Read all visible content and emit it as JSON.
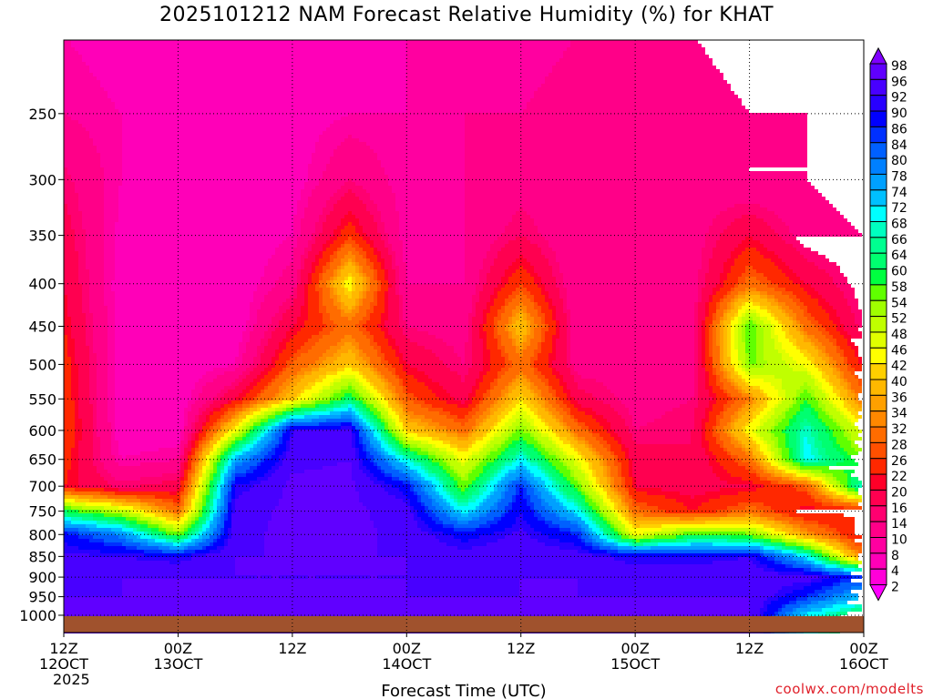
{
  "chart_data": {
    "type": "heatmap",
    "title": "2025101212 NAM Forecast Relative Humidity (%) for KHAT",
    "xlabel": "Forecast Time (UTC)",
    "ylabel": "",
    "credit": "coolwx.com/modelts",
    "x_hours": [
      0,
      6,
      12,
      18,
      24,
      30,
      36,
      42,
      48,
      54,
      60,
      66,
      72,
      78,
      84
    ],
    "xlim": [
      0,
      84
    ],
    "x_ticks": [
      {
        "hour": 0,
        "line1": "12Z",
        "line2": "12OCT",
        "line3": "2025"
      },
      {
        "hour": 12,
        "line1": "00Z",
        "line2": "13OCT"
      },
      {
        "hour": 24,
        "line1": "12Z"
      },
      {
        "hour": 36,
        "line1": "00Z",
        "line2": "14OCT"
      },
      {
        "hour": 48,
        "line1": "12Z"
      },
      {
        "hour": 60,
        "line1": "00Z",
        "line2": "15OCT"
      },
      {
        "hour": 72,
        "line1": "12Z"
      },
      {
        "hour": 84,
        "line1": "00Z",
        "line2": "16OCT"
      }
    ],
    "y_levels_hpa": [
      1000,
      950,
      900,
      850,
      800,
      750,
      700,
      650,
      600,
      550,
      500,
      450,
      400,
      350,
      300,
      250,
      200
    ],
    "y_ticks": [
      "250",
      "300",
      "350",
      "400",
      "450",
      "500",
      "550",
      "600",
      "650",
      "700",
      "750",
      "800",
      "850",
      "900",
      "950",
      "1000"
    ],
    "ylim_hpa": [
      1049,
      204
    ],
    "y_scale": "log",
    "grid": true,
    "rh_percent": [
      [
        96,
        96,
        95,
        93,
        88,
        60,
        22,
        24,
        26,
        25,
        24,
        22,
        20,
        18,
        15,
        10,
        8
      ],
      [
        96,
        96,
        96,
        92,
        78,
        50,
        15,
        8,
        6,
        6,
        6,
        6,
        6,
        7,
        8,
        8,
        6
      ],
      [
        96,
        96,
        96,
        90,
        55,
        30,
        18,
        10,
        5,
        5,
        5,
        5,
        5,
        5,
        5,
        6,
        6
      ],
      [
        96,
        96,
        96,
        96,
        95,
        94,
        90,
        75,
        45,
        20,
        8,
        5,
        5,
        5,
        5,
        6,
        6
      ],
      [
        96,
        96,
        96,
        96,
        97,
        97,
        97,
        95,
        92,
        40,
        28,
        20,
        12,
        8,
        6,
        6,
        6
      ],
      [
        96,
        96,
        96,
        96,
        97,
        97,
        97,
        96,
        93,
        62,
        40,
        30,
        45,
        25,
        14,
        8,
        6
      ],
      [
        96,
        96,
        96,
        96,
        95,
        94,
        88,
        68,
        40,
        28,
        20,
        14,
        10,
        8,
        8,
        8,
        8
      ],
      [
        96,
        96,
        95,
        94,
        88,
        70,
        55,
        45,
        30,
        18,
        14,
        12,
        10,
        10,
        10,
        10,
        8
      ],
      [
        96,
        96,
        96,
        95,
        93,
        90,
        86,
        70,
        55,
        42,
        30,
        40,
        26,
        16,
        12,
        10,
        8
      ],
      [
        96,
        96,
        96,
        94,
        86,
        70,
        55,
        45,
        30,
        18,
        12,
        10,
        10,
        10,
        12,
        12,
        10
      ],
      [
        96,
        96,
        95,
        90,
        45,
        30,
        20,
        18,
        14,
        12,
        12,
        12,
        12,
        12,
        12,
        12,
        10
      ],
      [
        96,
        96,
        95,
        90,
        58,
        22,
        18,
        16,
        16,
        14,
        12,
        12,
        12,
        12,
        12,
        12,
        10
      ],
      [
        96,
        96,
        95,
        92,
        55,
        30,
        20,
        30,
        45,
        32,
        55,
        58,
        30,
        20,
        10,
        10,
        8
      ],
      [
        70,
        86,
        94,
        70,
        35,
        20,
        28,
        70,
        68,
        58,
        45,
        30,
        20,
        12,
        10,
        10,
        8
      ],
      [
        60,
        72,
        84,
        30,
        20,
        22,
        70,
        55,
        45,
        30,
        20,
        14,
        12,
        10,
        8,
        8,
        8
      ]
    ],
    "ground_color": "#a0522d",
    "colorbar": {
      "labels": [
        "98",
        "96",
        "92",
        "90",
        "86",
        "84",
        "80",
        "78",
        "74",
        "72",
        "68",
        "66",
        "64",
        "60",
        "58",
        "54",
        "52",
        "48",
        "46",
        "42",
        "40",
        "36",
        "34",
        "32",
        "28",
        "26",
        "22",
        "20",
        "16",
        "14",
        "10",
        "8",
        "4",
        "2"
      ],
      "thresholds": [
        2,
        4,
        8,
        10,
        14,
        16,
        20,
        22,
        26,
        28,
        32,
        34,
        36,
        40,
        42,
        46,
        48,
        52,
        54,
        58,
        60,
        64,
        66,
        68,
        72,
        74,
        78,
        80,
        84,
        86,
        90,
        92,
        96,
        98
      ],
      "colors": [
        "#ff00ff",
        "#ff00d8",
        "#ff00b8",
        "#ff00a0",
        "#ff0088",
        "#ff0070",
        "#ff0050",
        "#ff0028",
        "#ff2800",
        "#ff5000",
        "#ff6c00",
        "#ff8800",
        "#ffa000",
        "#ffb800",
        "#ffd000",
        "#ffff00",
        "#e0ff00",
        "#c0ff00",
        "#a0ff00",
        "#60ff00",
        "#00ff40",
        "#00ff70",
        "#00ff90",
        "#00ffc0",
        "#00ffff",
        "#00c0ff",
        "#00a0ff",
        "#0080ff",
        "#0060ff",
        "#0030ff",
        "#0000ff",
        "#2800ff",
        "#4800ff",
        "#6000ff",
        "#8000ff"
      ]
    }
  }
}
